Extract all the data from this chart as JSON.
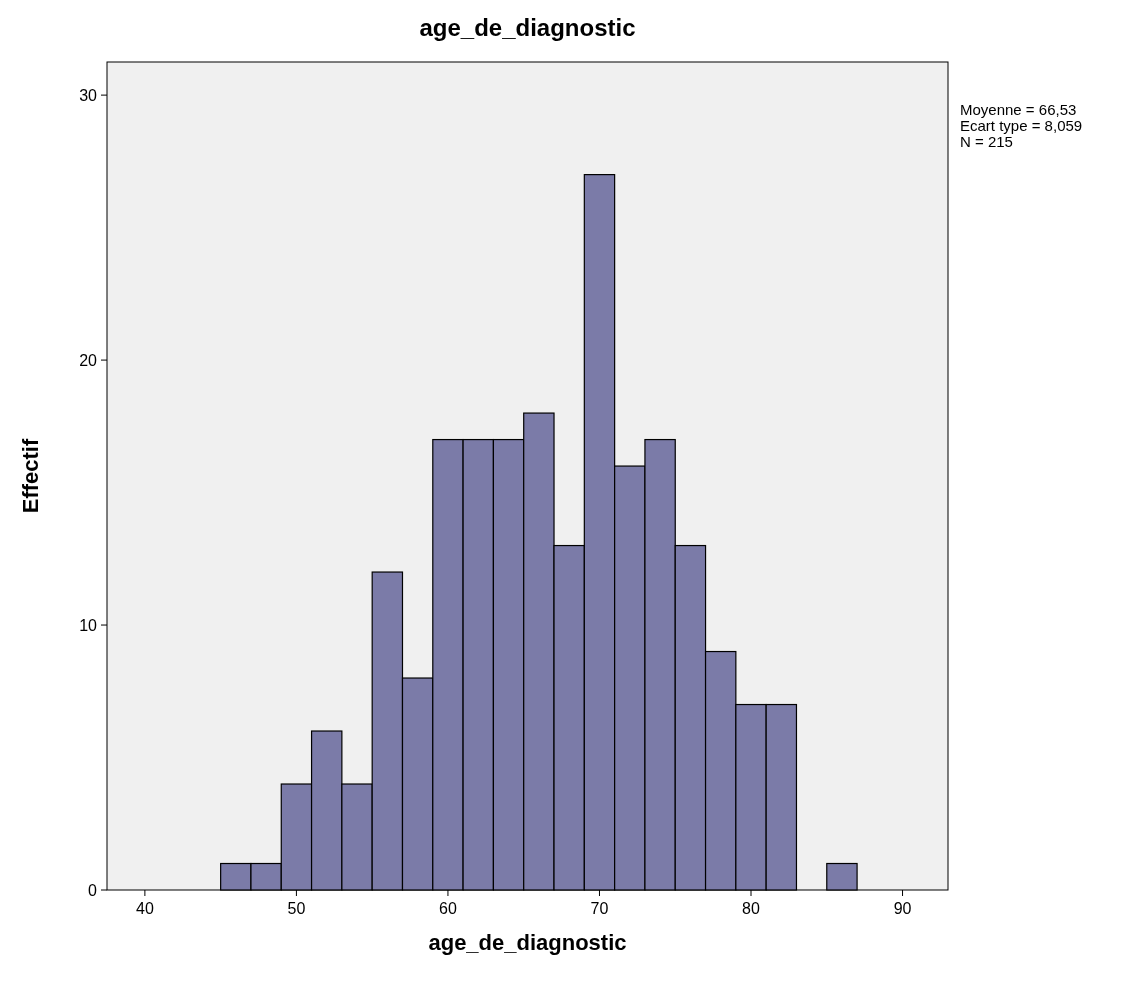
{
  "chart_data": {
    "type": "histogram",
    "title": "age_de_diagnostic",
    "xlabel": "age_de_diagnostic",
    "ylabel": "Effectif",
    "bins": [
      45,
      47,
      49,
      51,
      53,
      55,
      57,
      59,
      61,
      63,
      65,
      67,
      69,
      71,
      73,
      75,
      77,
      79,
      81,
      83,
      85,
      87
    ],
    "values": [
      1,
      1,
      4,
      6,
      4,
      12,
      8,
      17,
      17,
      17,
      18,
      13,
      27,
      16,
      17,
      13,
      9,
      7,
      7,
      0,
      1
    ],
    "color": "#7b7ba8",
    "xlim": [
      37.5,
      93
    ],
    "xticks": [
      40,
      50,
      60,
      70,
      80,
      90
    ],
    "ylim": [
      0,
      31.25
    ],
    "yticks": [
      0,
      10,
      20,
      30
    ],
    "grid": false,
    "annotations": [
      "Moyenne = 66,53",
      "Ecart type = 8,059",
      "N = 215"
    ]
  }
}
